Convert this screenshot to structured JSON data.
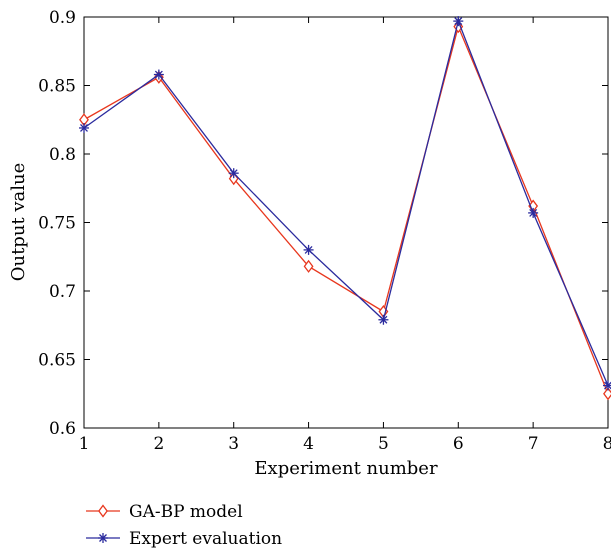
{
  "chart_data": {
    "type": "line",
    "xlabel": "Experiment number",
    "ylabel": "Output value",
    "xlim": [
      1,
      8
    ],
    "ylim": [
      0.6,
      0.9
    ],
    "x_ticks": [
      "1",
      "2",
      "3",
      "4",
      "5",
      "6",
      "7",
      "8"
    ],
    "y_ticks": [
      "0.6",
      "0.65",
      "0.7",
      "0.75",
      "0.8",
      "0.85",
      "0.9"
    ],
    "x": [
      1,
      2,
      3,
      4,
      5,
      6,
      7,
      8
    ],
    "grid": false,
    "legend_position": "bottom-left, below plot",
    "series": [
      {
        "name": "GA-BP model",
        "color": "#e8371e",
        "marker": "diamond-open",
        "values": [
          0.825,
          0.856,
          0.782,
          0.718,
          0.685,
          0.893,
          0.762,
          0.625
        ]
      },
      {
        "name": "Expert evaluation",
        "color": "#2b2b9e",
        "marker": "asterisk",
        "values": [
          0.819,
          0.858,
          0.786,
          0.73,
          0.679,
          0.897,
          0.757,
          0.631
        ]
      }
    ]
  }
}
